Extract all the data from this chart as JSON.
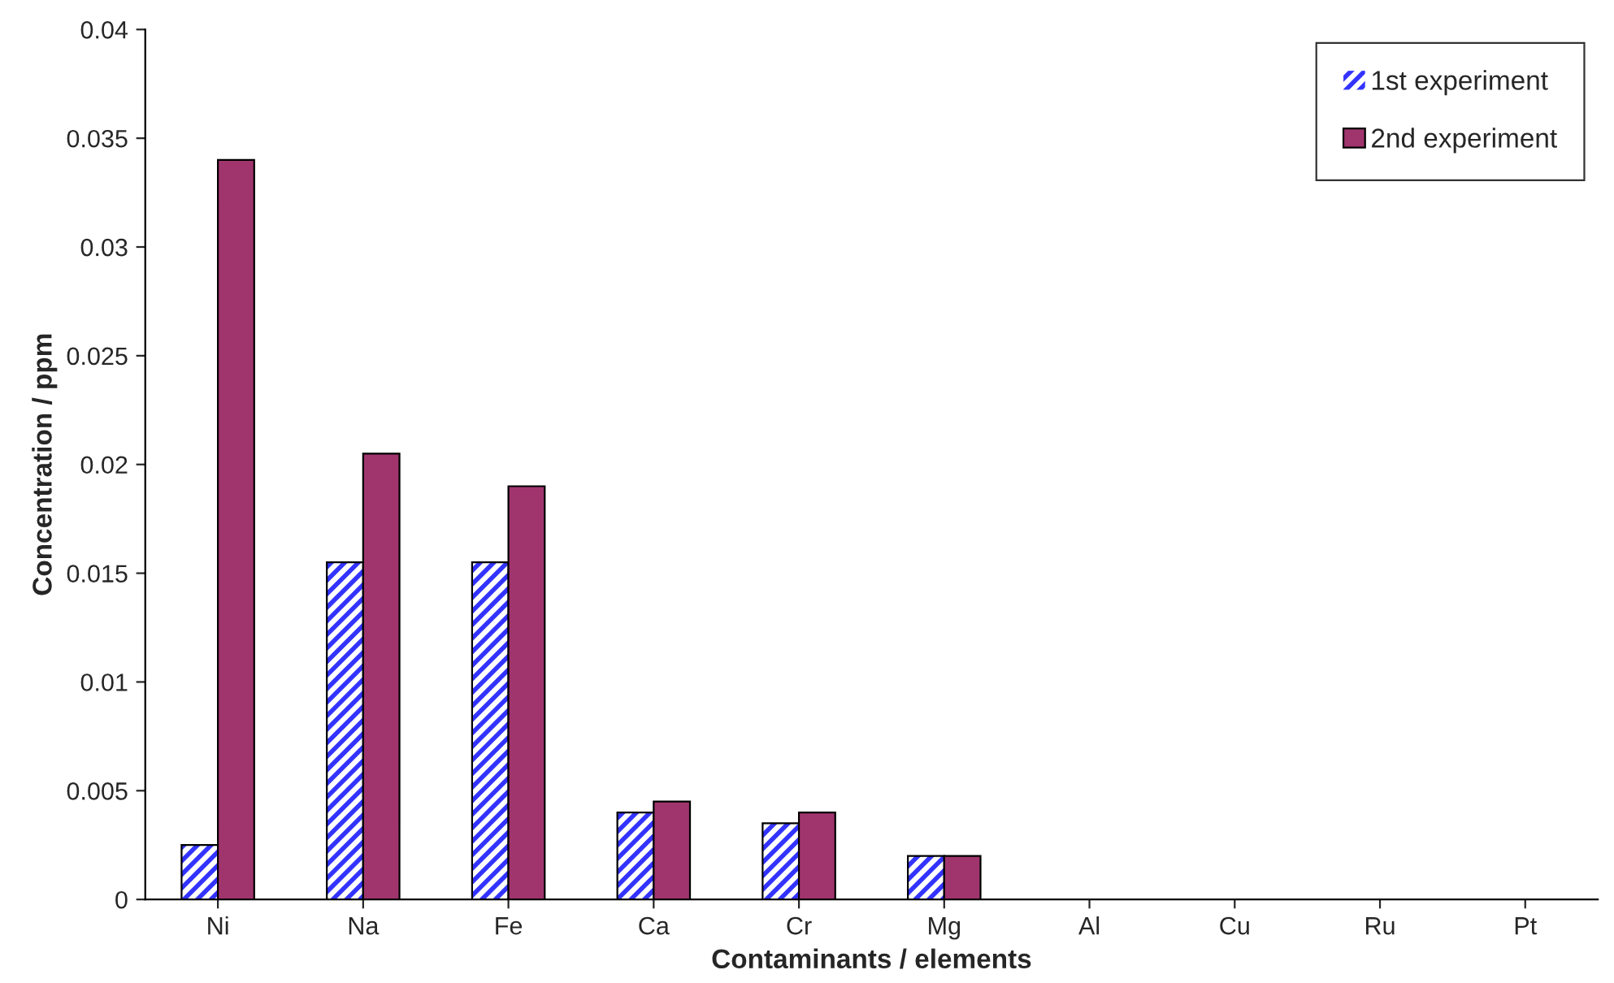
{
  "chart_data": {
    "type": "bar",
    "xlabel": "Contaminants / elements",
    "ylabel": "Concentration / ppm",
    "categories": [
      "Ni",
      "Na",
      "Fe",
      "Ca",
      "Cr",
      "Mg",
      "Al",
      "Cu",
      "Ru",
      "Pt"
    ],
    "series": [
      {
        "name": "1st experiment",
        "color": "#3333ff",
        "values": [
          0.0025,
          0.0155,
          0.0155,
          0.004,
          0.0035,
          0.002,
          0,
          0,
          0,
          0
        ]
      },
      {
        "name": "2nd experiment",
        "color": "#a0356e",
        "values": [
          0.034,
          0.0205,
          0.019,
          0.0045,
          0.004,
          0.002,
          0,
          0,
          0,
          0
        ]
      }
    ],
    "ylim": [
      0,
      0.04
    ],
    "yticks": [
      0,
      0.005,
      0.01,
      0.015,
      0.02,
      0.025,
      0.03,
      0.035,
      0.04
    ],
    "legend": "top right",
    "grid": false
  }
}
